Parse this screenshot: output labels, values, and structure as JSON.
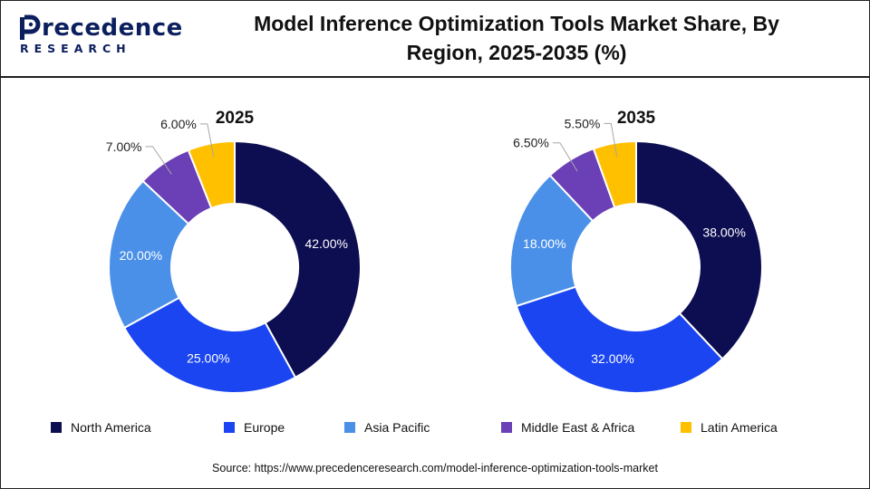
{
  "header": {
    "logo_main": "recedence",
    "logo_letter": "P",
    "logo_sub": "RESEARCH",
    "title_line1": "Model Inference Optimization Tools Market Share, By",
    "title_line2": "Region, 2025-2035 (%)"
  },
  "colors": {
    "North America": "#0d0d52",
    "Europe": "#1a45f0",
    "Asia Pacific": "#4a90e8",
    "Middle East & Africa": "#6b3fb5",
    "Latin America": "#ffc000",
    "logo": "#0b1f5e"
  },
  "chart_data": [
    {
      "type": "pie",
      "variant": "donut",
      "title": "2025",
      "categories": [
        "North America",
        "Europe",
        "Asia Pacific",
        "Middle East & Africa",
        "Latin America"
      ],
      "values": [
        42.0,
        25.0,
        20.0,
        7.0,
        6.0
      ],
      "labels": [
        "42.00%",
        "25.00%",
        "20.00%",
        "7.00%",
        "6.00%"
      ]
    },
    {
      "type": "pie",
      "variant": "donut",
      "title": "2035",
      "categories": [
        "North America",
        "Europe",
        "Asia Pacific",
        "Middle East & Africa",
        "Latin America"
      ],
      "values": [
        38.0,
        32.0,
        18.0,
        6.5,
        5.5
      ],
      "labels": [
        "38.00%",
        "32.00%",
        "18.00%",
        "6.50%",
        "5.50%"
      ]
    }
  ],
  "legend": {
    "placement": "bottom",
    "items": [
      "North America",
      "Europe",
      "Asia Pacific",
      "Middle East & Africa",
      "Latin America"
    ]
  },
  "source": "Source: https://www.precedenceresearch.com/model-inference-optimization-tools-market"
}
